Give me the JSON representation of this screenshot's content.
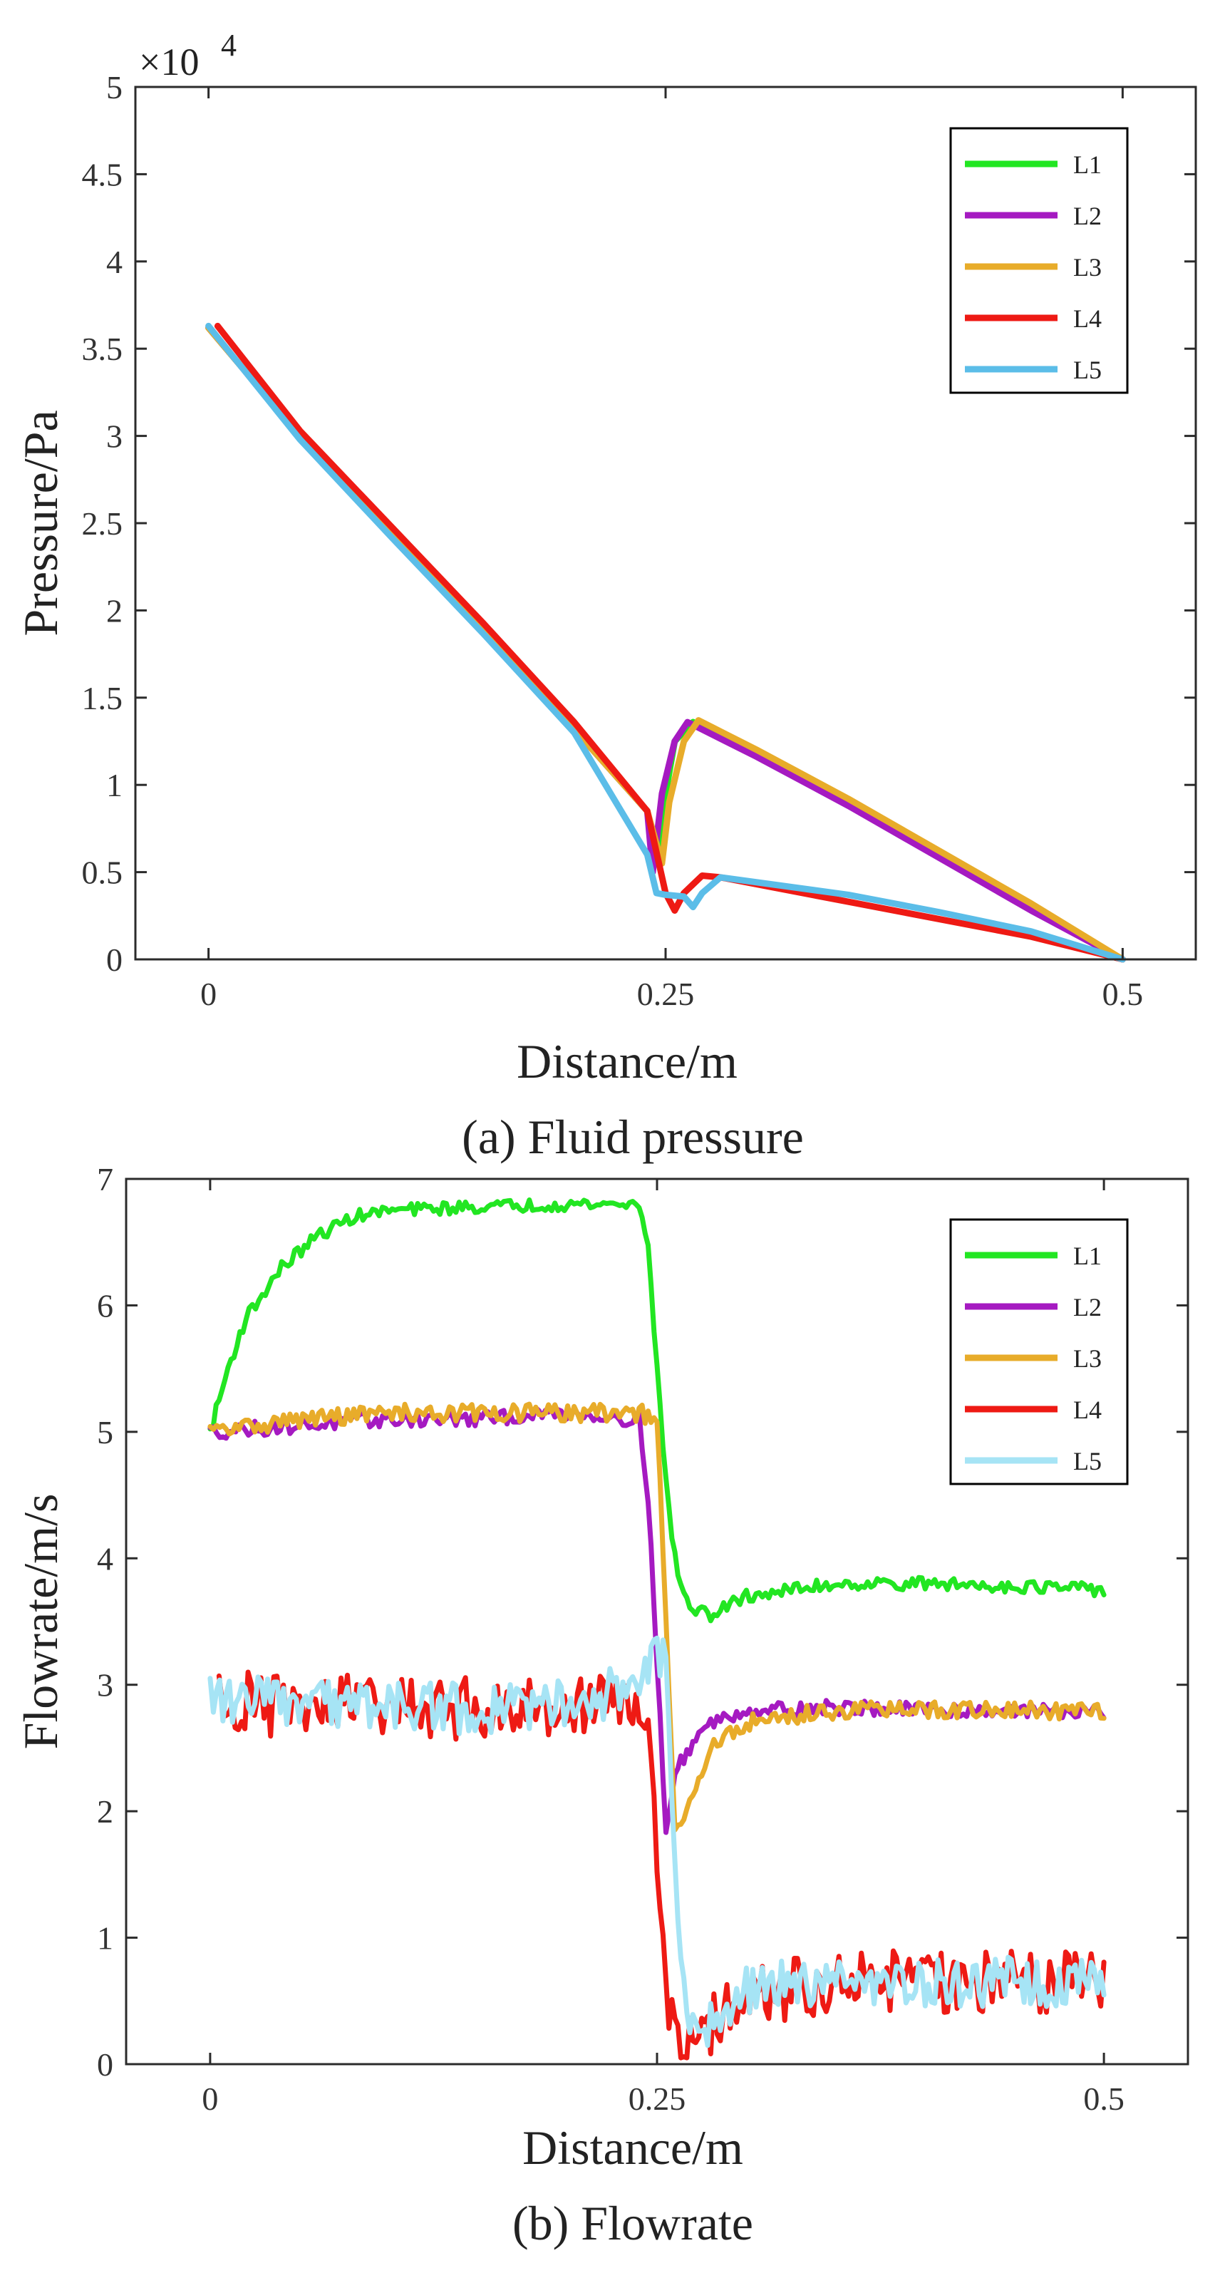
{
  "colors": {
    "L1": "#22e622",
    "L2": "#a51ac1",
    "L3": "#e8ac2a",
    "L4": "#ee1a14",
    "L5": "#5bbde8",
    "L5_flow": "#a6e4f5"
  },
  "chart_data": [
    {
      "type": "line",
      "caption": "(a) Fluid pressure",
      "xlabel": "Distance/m",
      "ylabel": "Pressure/Pa",
      "exponent_base": "×10",
      "exponent_power": "4",
      "xlim": [
        -0.04,
        0.54
      ],
      "ylim": [
        0,
        5
      ],
      "xticks": [
        0,
        0.25,
        0.5
      ],
      "xtick_labels": [
        "0",
        "0.25",
        "0.5"
      ],
      "yticks": [
        0,
        0.5,
        1,
        1.5,
        2,
        2.5,
        3,
        3.5,
        4,
        4.5,
        5
      ],
      "ytick_labels": [
        "0",
        "0.5",
        "1",
        "1.5",
        "2",
        "2.5",
        "3",
        "3.5",
        "4",
        "4.5",
        "5"
      ],
      "legend_position": "top-right",
      "series": [
        {
          "name": "L1",
          "x": [
            0.0,
            0.05,
            0.1,
            0.15,
            0.2,
            0.24,
            0.245,
            0.25,
            0.255,
            0.265,
            0.3,
            0.35,
            0.4,
            0.45,
            0.5
          ],
          "y": [
            3.62,
            3.0,
            2.45,
            1.9,
            1.32,
            0.85,
            0.6,
            0.95,
            1.25,
            1.36,
            1.18,
            0.9,
            0.6,
            0.3,
            0.0
          ]
        },
        {
          "name": "L2",
          "x": [
            0.0,
            0.05,
            0.1,
            0.15,
            0.2,
            0.24,
            0.243,
            0.248,
            0.255,
            0.262,
            0.3,
            0.35,
            0.4,
            0.45,
            0.5
          ],
          "y": [
            3.62,
            3.0,
            2.45,
            1.9,
            1.32,
            0.85,
            0.5,
            0.95,
            1.25,
            1.36,
            1.16,
            0.88,
            0.58,
            0.28,
            0.0
          ]
        },
        {
          "name": "L3",
          "x": [
            0.0,
            0.05,
            0.1,
            0.15,
            0.2,
            0.24,
            0.248,
            0.252,
            0.26,
            0.268,
            0.3,
            0.35,
            0.4,
            0.45,
            0.5
          ],
          "y": [
            3.62,
            3.0,
            2.45,
            1.9,
            1.32,
            0.85,
            0.55,
            0.9,
            1.25,
            1.37,
            1.2,
            0.92,
            0.62,
            0.32,
            0.0
          ]
        },
        {
          "name": "L4",
          "x": [
            0.005,
            0.05,
            0.1,
            0.15,
            0.2,
            0.24,
            0.25,
            0.255,
            0.26,
            0.27,
            0.28,
            0.35,
            0.4,
            0.45,
            0.5
          ],
          "y": [
            3.63,
            3.03,
            2.48,
            1.93,
            1.36,
            0.85,
            0.38,
            0.28,
            0.38,
            0.48,
            0.47,
            0.33,
            0.23,
            0.13,
            0.0
          ]
        },
        {
          "name": "L5",
          "x": [
            0.0,
            0.05,
            0.1,
            0.15,
            0.2,
            0.24,
            0.245,
            0.25,
            0.26,
            0.265,
            0.27,
            0.28,
            0.35,
            0.4,
            0.45,
            0.5
          ],
          "y": [
            3.63,
            2.98,
            2.42,
            1.87,
            1.3,
            0.6,
            0.38,
            0.37,
            0.36,
            0.3,
            0.38,
            0.47,
            0.37,
            0.27,
            0.16,
            0.0
          ]
        }
      ]
    },
    {
      "type": "line",
      "caption": "(b) Flowrate",
      "xlabel": "Distance/m",
      "ylabel": "Flowrate/m/s",
      "xlim": [
        -0.047,
        0.547
      ],
      "ylim": [
        0,
        7
      ],
      "xticks": [
        0,
        0.25,
        0.5
      ],
      "xtick_labels": [
        "0",
        "0.25",
        "0.5"
      ],
      "yticks": [
        0,
        1,
        2,
        3,
        4,
        5,
        6,
        7
      ],
      "ytick_labels": [
        "0",
        "1",
        "2",
        "3",
        "4",
        "5",
        "6",
        "7"
      ],
      "legend_position": "top-right",
      "series": [
        {
          "name": "L1",
          "x": [
            0.0,
            0.01,
            0.02,
            0.04,
            0.06,
            0.08,
            0.1,
            0.15,
            0.2,
            0.24,
            0.245,
            0.25,
            0.255,
            0.26,
            0.265,
            0.27,
            0.28,
            0.3,
            0.35,
            0.4,
            0.45,
            0.5
          ],
          "y": [
            5.0,
            5.5,
            5.9,
            6.3,
            6.55,
            6.7,
            6.75,
            6.78,
            6.8,
            6.8,
            6.5,
            5.5,
            4.6,
            4.0,
            3.7,
            3.6,
            3.55,
            3.7,
            3.8,
            3.8,
            3.78,
            3.75
          ],
          "noise": 0.05
        },
        {
          "name": "L2",
          "x": [
            0.0,
            0.05,
            0.1,
            0.15,
            0.2,
            0.24,
            0.245,
            0.25,
            0.255,
            0.26,
            0.27,
            0.28,
            0.3,
            0.35,
            0.4,
            0.45,
            0.5
          ],
          "y": [
            5.0,
            5.05,
            5.1,
            5.1,
            5.15,
            5.1,
            4.5,
            3.2,
            1.8,
            2.3,
            2.55,
            2.7,
            2.8,
            2.82,
            2.8,
            2.8,
            2.78
          ],
          "noise": 0.06
        },
        {
          "name": "L3",
          "x": [
            0.0,
            0.05,
            0.1,
            0.15,
            0.2,
            0.24,
            0.25,
            0.255,
            0.26,
            0.27,
            0.28,
            0.3,
            0.35,
            0.4,
            0.45,
            0.5
          ],
          "y": [
            5.0,
            5.1,
            5.15,
            5.15,
            5.15,
            5.15,
            5.1,
            3.5,
            1.8,
            2.1,
            2.5,
            2.7,
            2.8,
            2.8,
            2.8,
            2.78
          ],
          "noise": 0.07
        },
        {
          "name": "L4",
          "x": [
            0.005,
            0.05,
            0.1,
            0.15,
            0.2,
            0.24,
            0.245,
            0.25,
            0.255,
            0.26,
            0.265,
            0.27,
            0.28,
            0.3,
            0.35,
            0.4,
            0.45,
            0.5
          ],
          "y": [
            2.9,
            2.8,
            2.85,
            2.8,
            2.85,
            2.9,
            2.7,
            1.5,
            0.6,
            0.3,
            0.15,
            0.1,
            0.3,
            0.55,
            0.65,
            0.65,
            0.65,
            0.65
          ],
          "noise": 0.25
        },
        {
          "name": "L5",
          "x": [
            0.0,
            0.05,
            0.1,
            0.15,
            0.2,
            0.24,
            0.25,
            0.255,
            0.26,
            0.265,
            0.27,
            0.275,
            0.28,
            0.3,
            0.35,
            0.4,
            0.45,
            0.5
          ],
          "y": [
            2.9,
            2.85,
            2.85,
            2.8,
            2.85,
            3.0,
            3.2,
            3.2,
            1.5,
            0.5,
            0.2,
            0.15,
            0.35,
            0.6,
            0.65,
            0.65,
            0.65,
            0.65
          ],
          "noise": 0.2
        }
      ]
    }
  ]
}
